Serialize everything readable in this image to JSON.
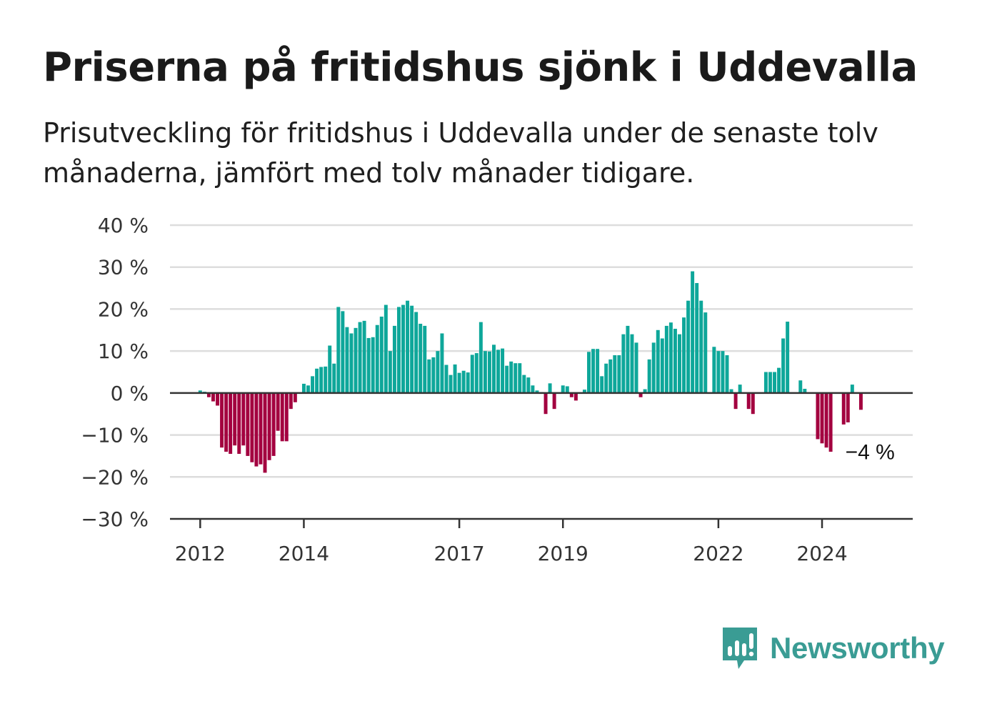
{
  "title": "Priserna på fritidshus sjönk i Uddevalla",
  "subtitle": "Prisutveckling för fritidshus i Uddevalla under de senaste tolv månaderna, jämfört med tolv månader tidigare.",
  "brand": "Newsworthy",
  "colors": {
    "positive": "#0ea79a",
    "negative": "#a3003f",
    "grid": "#dddddd",
    "axis": "#333333",
    "brand": "#3a9c94"
  },
  "chart_data": {
    "type": "bar",
    "ylim": [
      -30,
      40
    ],
    "yticks": [
      40,
      30,
      20,
      10,
      0,
      -10,
      -20,
      -30
    ],
    "ytick_labels": [
      "40 %",
      "30 %",
      "20 %",
      "10 %",
      "0 %",
      "−10 %",
      "−20 %",
      "−30 %"
    ],
    "xlim": [
      "2011-06",
      "2025-10"
    ],
    "xticks": [
      "2012-01",
      "2014-01",
      "2017-01",
      "2019-01",
      "2022-01",
      "2024-01"
    ],
    "xtick_labels": [
      "2012",
      "2014",
      "2017",
      "2019",
      "2022",
      "2024"
    ],
    "grid": true,
    "annotation": {
      "text": "−4 %",
      "x": "2025-01",
      "value": -4
    },
    "series": [
      {
        "values": [
          [
            "2012-01",
            0.6
          ],
          [
            "2012-02",
            0.3
          ],
          [
            "2012-03",
            -1
          ],
          [
            "2012-04",
            -2
          ],
          [
            "2012-05",
            -3
          ],
          [
            "2012-06",
            -13
          ],
          [
            "2012-07",
            -14
          ],
          [
            "2012-08",
            -14.5
          ],
          [
            "2012-09",
            -12.5
          ],
          [
            "2012-10",
            -14.5
          ],
          [
            "2012-11",
            -12.5
          ],
          [
            "2012-12",
            -15
          ],
          [
            "2013-01",
            -16.5
          ],
          [
            "2013-02",
            -17.5
          ],
          [
            "2013-03",
            -17
          ],
          [
            "2013-04",
            -19
          ],
          [
            "2013-05",
            -16
          ],
          [
            "2013-06",
            -15
          ],
          [
            "2013-07",
            -9
          ],
          [
            "2013-08",
            -11.5
          ],
          [
            "2013-09",
            -11.5
          ],
          [
            "2013-10",
            -3.8
          ],
          [
            "2013-11",
            -2.2
          ],
          [
            "2013-12",
            0
          ],
          [
            "2014-01",
            2.2
          ],
          [
            "2014-02",
            1.8
          ],
          [
            "2014-03",
            4
          ],
          [
            "2014-04",
            5.8
          ],
          [
            "2014-05",
            6.2
          ],
          [
            "2014-06",
            6.3
          ],
          [
            "2014-07",
            11.3
          ],
          [
            "2014-08",
            7
          ],
          [
            "2014-09",
            20.5
          ],
          [
            "2014-10",
            19.5
          ],
          [
            "2014-11",
            15.7
          ],
          [
            "2014-12",
            14.2
          ],
          [
            "2015-01",
            15.5
          ],
          [
            "2015-02",
            16.9
          ],
          [
            "2015-03",
            17.2
          ],
          [
            "2015-04",
            13.1
          ],
          [
            "2015-05",
            13.3
          ],
          [
            "2015-06",
            16.2
          ],
          [
            "2015-07",
            18.2
          ],
          [
            "2015-08",
            21
          ],
          [
            "2015-09",
            10
          ],
          [
            "2015-10",
            16
          ],
          [
            "2015-11",
            20.5
          ],
          [
            "2015-12",
            21
          ],
          [
            "2016-01",
            22
          ],
          [
            "2016-02",
            20.8
          ],
          [
            "2016-03",
            19.3
          ],
          [
            "2016-04",
            16.5
          ],
          [
            "2016-05",
            16
          ],
          [
            "2016-06",
            8
          ],
          [
            "2016-07",
            8.5
          ],
          [
            "2016-08",
            10
          ],
          [
            "2016-09",
            14.2
          ],
          [
            "2016-10",
            6.7
          ],
          [
            "2016-11",
            4.3
          ],
          [
            "2016-12",
            6.8
          ],
          [
            "2017-01",
            4.8
          ],
          [
            "2017-02",
            5.3
          ],
          [
            "2017-03",
            4.9
          ],
          [
            "2017-04",
            9.1
          ],
          [
            "2017-05",
            9.5
          ],
          [
            "2017-06",
            16.9
          ],
          [
            "2017-07",
            10
          ],
          [
            "2017-08",
            9.9
          ],
          [
            "2017-09",
            11.5
          ],
          [
            "2017-10",
            10.3
          ],
          [
            "2017-11",
            10.6
          ],
          [
            "2017-12",
            6.5
          ],
          [
            "2018-01",
            7.5
          ],
          [
            "2018-02",
            7.1
          ],
          [
            "2018-03",
            7.1
          ],
          [
            "2018-04",
            4.3
          ],
          [
            "2018-05",
            3.7
          ],
          [
            "2018-06",
            1.8
          ],
          [
            "2018-07",
            0.6
          ],
          [
            "2018-08",
            0.2
          ],
          [
            "2018-09",
            -5
          ],
          [
            "2018-10",
            2.3
          ],
          [
            "2018-11",
            -3.8
          ],
          [
            "2018-12",
            0
          ],
          [
            "2019-01",
            1.8
          ],
          [
            "2019-02",
            1.6
          ],
          [
            "2019-03",
            -1
          ],
          [
            "2019-04",
            -1.8
          ],
          [
            "2019-05",
            0
          ],
          [
            "2019-06",
            0.8
          ],
          [
            "2019-07",
            9.8
          ],
          [
            "2019-08",
            10.5
          ],
          [
            "2019-09",
            10.5
          ],
          [
            "2019-10",
            4
          ],
          [
            "2019-11",
            7
          ],
          [
            "2019-12",
            8
          ],
          [
            "2020-01",
            9
          ],
          [
            "2020-02",
            9
          ],
          [
            "2020-03",
            14
          ],
          [
            "2020-04",
            16
          ],
          [
            "2020-05",
            14
          ],
          [
            "2020-06",
            12
          ],
          [
            "2020-07",
            -1
          ],
          [
            "2020-08",
            0.9
          ],
          [
            "2020-09",
            8
          ],
          [
            "2020-10",
            12
          ],
          [
            "2020-11",
            15
          ],
          [
            "2020-12",
            13
          ],
          [
            "2021-01",
            16
          ],
          [
            "2021-02",
            16.8
          ],
          [
            "2021-03",
            15.3
          ],
          [
            "2021-04",
            14
          ],
          [
            "2021-05",
            18
          ],
          [
            "2021-06",
            22
          ],
          [
            "2021-07",
            29
          ],
          [
            "2021-08",
            26.2
          ],
          [
            "2021-09",
            22
          ],
          [
            "2021-10",
            19.2
          ],
          [
            "2021-11",
            0
          ],
          [
            "2021-12",
            11
          ],
          [
            "2022-01",
            10
          ],
          [
            "2022-02",
            10
          ],
          [
            "2022-03",
            9
          ],
          [
            "2022-04",
            0.9
          ],
          [
            "2022-05",
            -3.8
          ],
          [
            "2022-06",
            2
          ],
          [
            "2022-07",
            0
          ],
          [
            "2022-08",
            -3.8
          ],
          [
            "2022-09",
            -5
          ],
          [
            "2022-10",
            0
          ],
          [
            "2022-11",
            0
          ],
          [
            "2022-12",
            5
          ],
          [
            "2023-01",
            5
          ],
          [
            "2023-02",
            5
          ],
          [
            "2023-03",
            6
          ],
          [
            "2023-04",
            13
          ],
          [
            "2023-05",
            17
          ],
          [
            "2023-06",
            0
          ],
          [
            "2023-07",
            0
          ],
          [
            "2023-08",
            3
          ],
          [
            "2023-09",
            1
          ],
          [
            "2023-10",
            0
          ],
          [
            "2023-11",
            0
          ],
          [
            "2023-12",
            -11
          ],
          [
            "2024-01",
            -12
          ],
          [
            "2024-02",
            -13
          ],
          [
            "2024-03",
            -14
          ],
          [
            "2024-04",
            0
          ],
          [
            "2024-05",
            0
          ],
          [
            "2024-06",
            -7.5
          ],
          [
            "2024-07",
            -7
          ],
          [
            "2024-08",
            2
          ],
          [
            "2024-09",
            0
          ],
          [
            "2024-10",
            -4
          ]
        ]
      }
    ]
  }
}
